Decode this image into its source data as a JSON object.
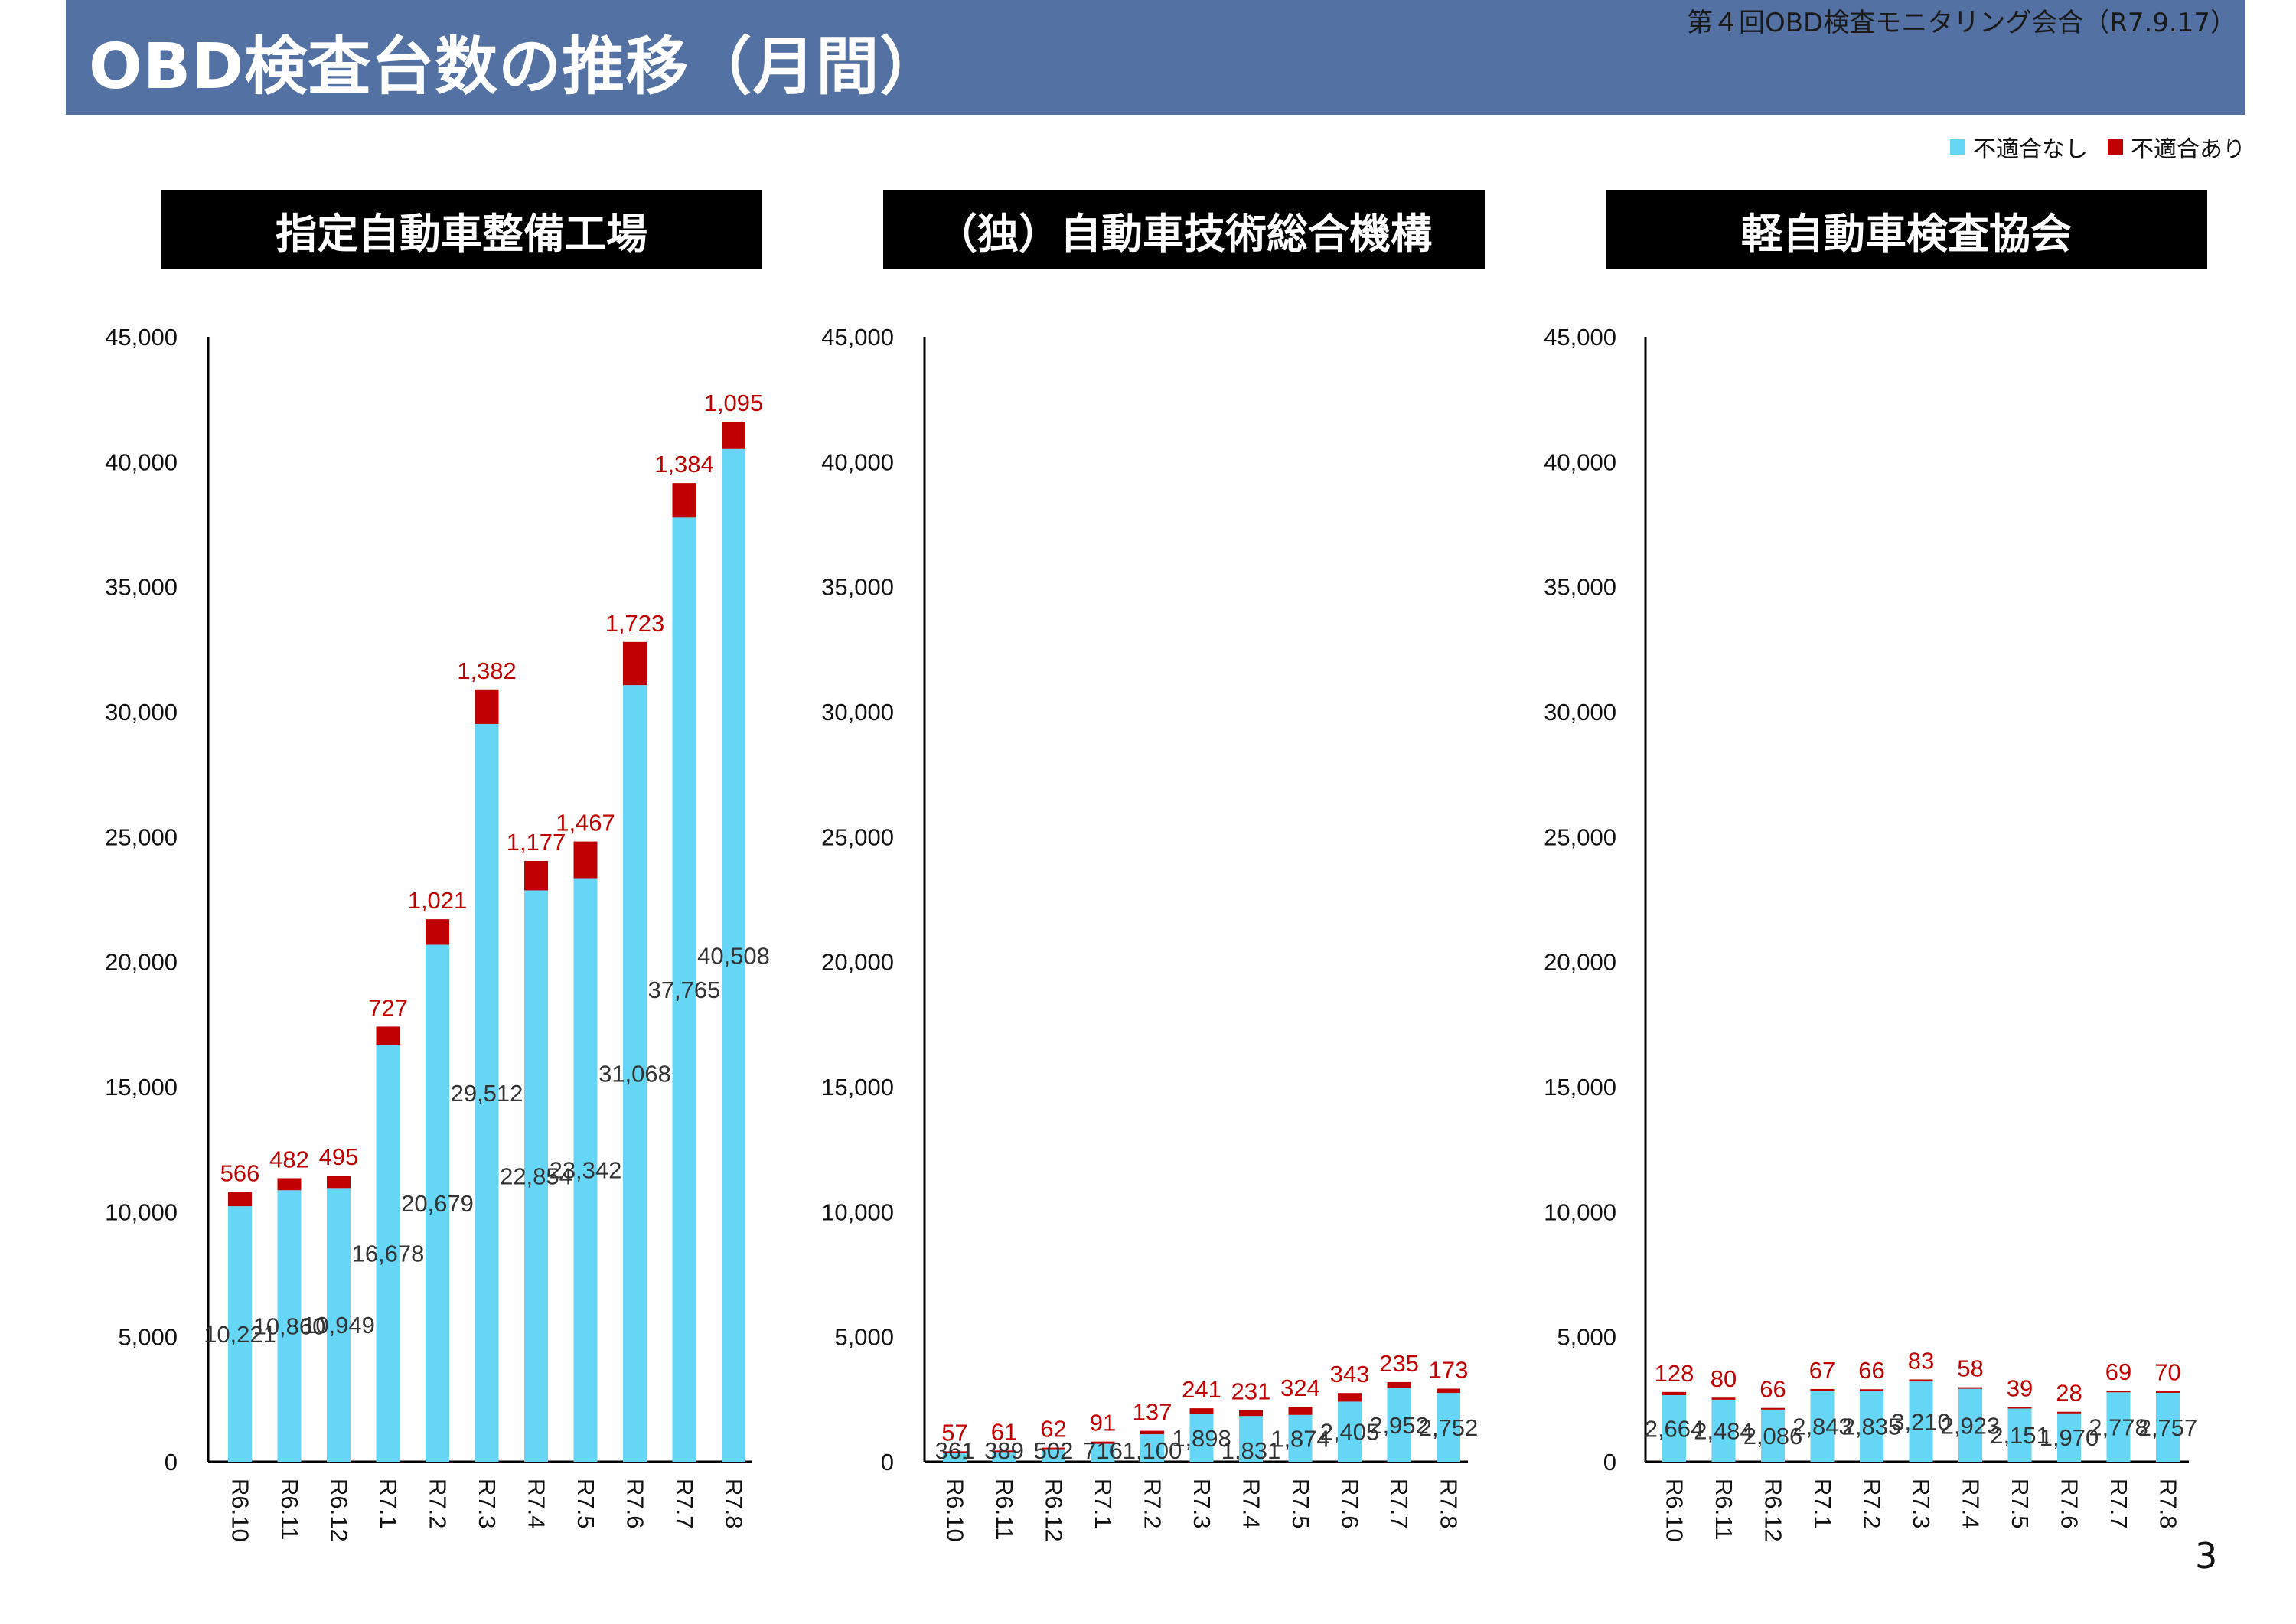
{
  "header": {
    "title": "OBD検査台数の推移（月間）",
    "meeting_note": "第４回OBD検査モニタリング会合（R7.9.17）"
  },
  "legend": {
    "items": [
      {
        "label": "不適合なし",
        "color": "#66d6f7"
      },
      {
        "label": "不適合あり",
        "color": "#c00000"
      }
    ]
  },
  "colors": {
    "pass": "#66d6f7",
    "fail": "#c00000",
    "header_bg": "#5471a3",
    "panel_title_bg": "#000000"
  },
  "page_number": "3",
  "chart_data": [
    {
      "type": "bar",
      "stacked": true,
      "title": "指定自動車整備工場",
      "categories": [
        "R6.10",
        "R6.11",
        "R6.12",
        "R7.1",
        "R7.2",
        "R7.3",
        "R7.4",
        "R7.5",
        "R7.6",
        "R7.7",
        "R7.8"
      ],
      "series": [
        {
          "name": "不適合なし",
          "values": [
            10221,
            10860,
            10949,
            16678,
            20679,
            29512,
            22854,
            23342,
            31068,
            37765,
            40508
          ]
        },
        {
          "name": "不適合あり",
          "values": [
            566,
            482,
            495,
            727,
            1021,
            1382,
            1177,
            1467,
            1723,
            1384,
            1095
          ]
        }
      ],
      "value_labels": [
        [
          "10,221",
          "10,860",
          "10,949",
          "16,678",
          "20,679",
          "29,512",
          "22,854",
          "23,342",
          "31,068",
          "37,765",
          "40,508"
        ],
        [
          "566",
          "482",
          "495",
          "727",
          "1,021",
          "1,382",
          "1,177",
          "1,467",
          "1,723",
          "1,384",
          "1,095"
        ]
      ],
      "ylim": [
        0,
        45000
      ],
      "yticks": [
        "0",
        "5,000",
        "10,000",
        "15,000",
        "20,000",
        "25,000",
        "30,000",
        "35,000",
        "40,000",
        "45,000"
      ],
      "grid": false
    },
    {
      "type": "bar",
      "stacked": true,
      "title": "（独）自動車技術総合機構",
      "categories": [
        "R6.10",
        "R6.11",
        "R6.12",
        "R7.1",
        "R7.2",
        "R7.3",
        "R7.4",
        "R7.5",
        "R7.6",
        "R7.7",
        "R7.8"
      ],
      "series": [
        {
          "name": "不適合なし",
          "values": [
            361,
            389,
            502,
            716,
            1100,
            1898,
            1831,
            1874,
            2405,
            2952,
            2752
          ]
        },
        {
          "name": "不適合あり",
          "values": [
            57,
            61,
            62,
            91,
            137,
            241,
            231,
            324,
            343,
            235,
            173
          ]
        }
      ],
      "value_labels": [
        [
          "361",
          "389",
          "502",
          "716",
          "1,100",
          "1,898",
          "1,831",
          "1,874",
          "2,405",
          "2,952",
          "2,752"
        ],
        [
          "57",
          "61",
          "62",
          "91",
          "137",
          "241",
          "231",
          "324",
          "343",
          "235",
          "173"
        ]
      ],
      "ylim": [
        0,
        45000
      ],
      "yticks": [
        "0",
        "5,000",
        "10,000",
        "15,000",
        "20,000",
        "25,000",
        "30,000",
        "35,000",
        "40,000",
        "45,000"
      ],
      "grid": false
    },
    {
      "type": "bar",
      "stacked": true,
      "title": "軽自動車検査協会",
      "categories": [
        "R6.10",
        "R6.11",
        "R6.12",
        "R7.1",
        "R7.2",
        "R7.3",
        "R7.4",
        "R7.5",
        "R7.6",
        "R7.7",
        "R7.8"
      ],
      "series": [
        {
          "name": "不適合なし",
          "values": [
            2664,
            2484,
            2086,
            2843,
            2835,
            3210,
            2923,
            2151,
            1970,
            2778,
            2757
          ]
        },
        {
          "name": "不適合あり",
          "values": [
            128,
            80,
            66,
            67,
            66,
            83,
            58,
            39,
            28,
            69,
            70
          ]
        }
      ],
      "value_labels": [
        [
          "2,664",
          "2,484",
          "2,086",
          "2,843",
          "2,835",
          "3,210",
          "2,923",
          "2,151",
          "1,970",
          "2,778",
          "2,757"
        ],
        [
          "128",
          "80",
          "66",
          "67",
          "66",
          "83",
          "58",
          "39",
          "28",
          "69",
          "70"
        ]
      ],
      "ylim": [
        0,
        45000
      ],
      "yticks": [
        "0",
        "5,000",
        "10,000",
        "15,000",
        "20,000",
        "25,000",
        "30,000",
        "35,000",
        "40,000",
        "45,000"
      ],
      "grid": false
    }
  ]
}
